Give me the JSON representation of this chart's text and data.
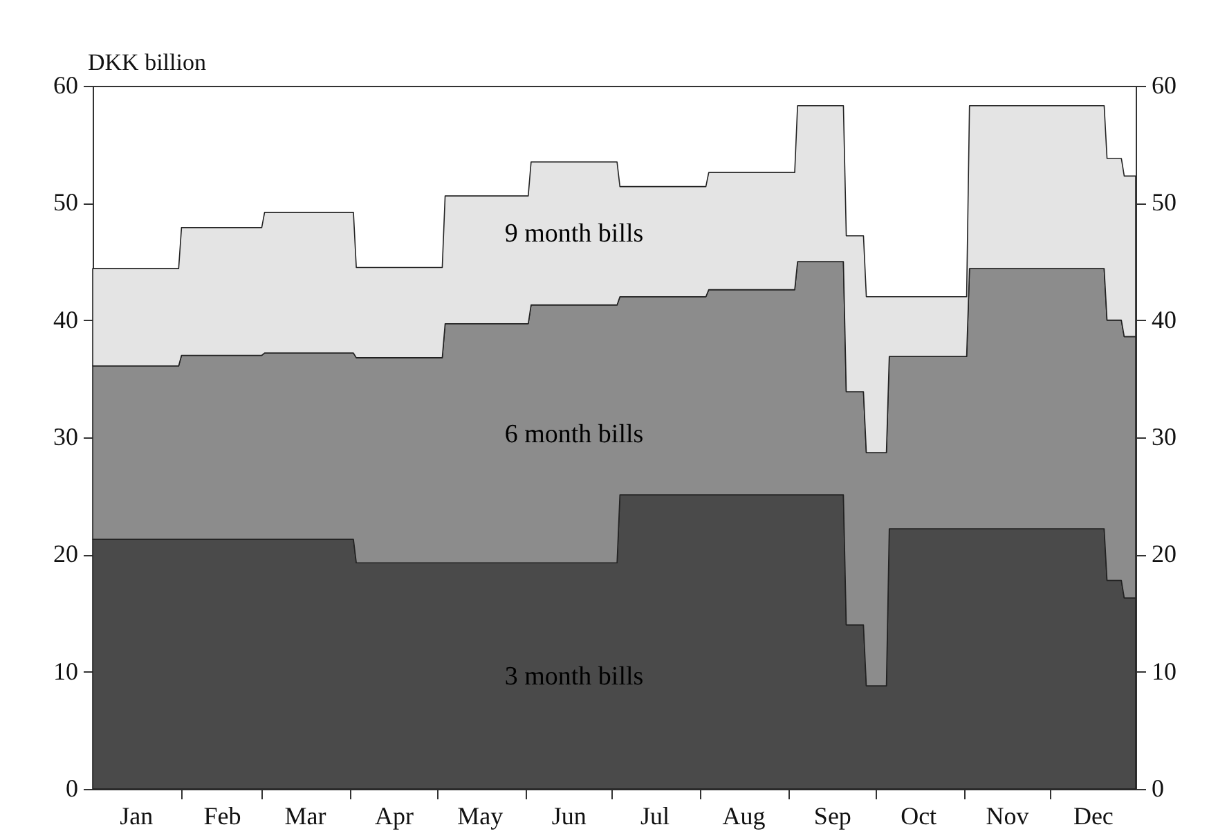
{
  "chart_data": {
    "type": "area",
    "stacked": true,
    "ylabel": "DKK billion",
    "x": [
      "--01-01",
      "--01-31",
      "--02-01",
      "--03-01",
      "--03-02",
      "--04-02",
      "--04-03",
      "--05-03",
      "--05-04",
      "--06-02",
      "--06-03",
      "--07-03",
      "--07-04",
      "--08-03",
      "--08-04",
      "--09-03",
      "--09-04",
      "--09-20",
      "--09-21",
      "--09-27",
      "--09-28",
      "--10-05",
      "--10-06",
      "--11-02",
      "--11-03",
      "--12-20",
      "--12-21",
      "--12-26",
      "--12-27",
      "--12-31"
    ],
    "series": [
      {
        "name": "3 month bills",
        "color": "#4a4a4a",
        "values": [
          21.3,
          21.3,
          21.3,
          21.3,
          21.3,
          21.3,
          19.3,
          19.3,
          19.3,
          19.3,
          19.3,
          19.3,
          25.1,
          25.1,
          25.1,
          25.1,
          25.1,
          25.1,
          14.0,
          14.0,
          8.8,
          8.8,
          22.2,
          22.2,
          22.2,
          22.2,
          17.8,
          17.8,
          16.3,
          16.3
        ]
      },
      {
        "name": "6 month bills",
        "color": "#8c8c8c",
        "values": [
          14.8,
          14.8,
          15.7,
          15.7,
          15.9,
          15.9,
          17.5,
          17.5,
          20.4,
          20.4,
          22.0,
          22.0,
          16.9,
          16.9,
          17.5,
          17.5,
          19.9,
          19.9,
          19.9,
          19.9,
          19.9,
          19.9,
          14.7,
          14.7,
          22.2,
          22.2,
          22.2,
          22.2,
          22.3,
          22.3
        ]
      },
      {
        "name": "9 month bills",
        "color": "#e4e4e4",
        "values": [
          8.3,
          8.3,
          10.9,
          10.9,
          12.0,
          12.0,
          7.7,
          7.7,
          10.9,
          10.9,
          12.2,
          12.2,
          9.4,
          9.4,
          10.0,
          10.0,
          13.3,
          13.3,
          13.3,
          13.3,
          13.3,
          13.3,
          5.1,
          5.1,
          13.9,
          13.9,
          13.8,
          13.8,
          13.7,
          13.7
        ]
      }
    ],
    "xlim": [
      "--01-01",
      "--12-31"
    ],
    "xticks": [
      {
        "value": "--01-16",
        "label": "Jan"
      },
      {
        "value": "--02-01",
        "label": null
      },
      {
        "value": "--02-15",
        "label": "Feb"
      },
      {
        "value": "--03-01",
        "label": null
      },
      {
        "value": "--03-16",
        "label": "Mar"
      },
      {
        "value": "--04-01",
        "label": null
      },
      {
        "value": "--04-16",
        "label": "Apr"
      },
      {
        "value": "--05-01",
        "label": null
      },
      {
        "value": "--05-16",
        "label": "May"
      },
      {
        "value": "--06-01",
        "label": null
      },
      {
        "value": "--06-16",
        "label": "Jun"
      },
      {
        "value": "--07-01",
        "label": null
      },
      {
        "value": "--07-16",
        "label": "Jul"
      },
      {
        "value": "--08-01",
        "label": null
      },
      {
        "value": "--08-16",
        "label": "Aug"
      },
      {
        "value": "--09-01",
        "label": null
      },
      {
        "value": "--09-16",
        "label": "Sep"
      },
      {
        "value": "--10-01",
        "label": null
      },
      {
        "value": "--10-16",
        "label": "Oct"
      },
      {
        "value": "--11-01",
        "label": null
      },
      {
        "value": "--11-16",
        "label": "Nov"
      },
      {
        "value": "--12-01",
        "label": null
      },
      {
        "value": "--12-16",
        "label": "Dec"
      }
    ],
    "ylim": [
      0,
      60
    ],
    "yticks": [
      0,
      10,
      20,
      30,
      40,
      50,
      60
    ],
    "y2lim": [
      0,
      60
    ],
    "y2ticks": [
      0,
      10,
      20,
      30,
      40,
      50,
      60
    ],
    "grid": false,
    "legend": false
  }
}
